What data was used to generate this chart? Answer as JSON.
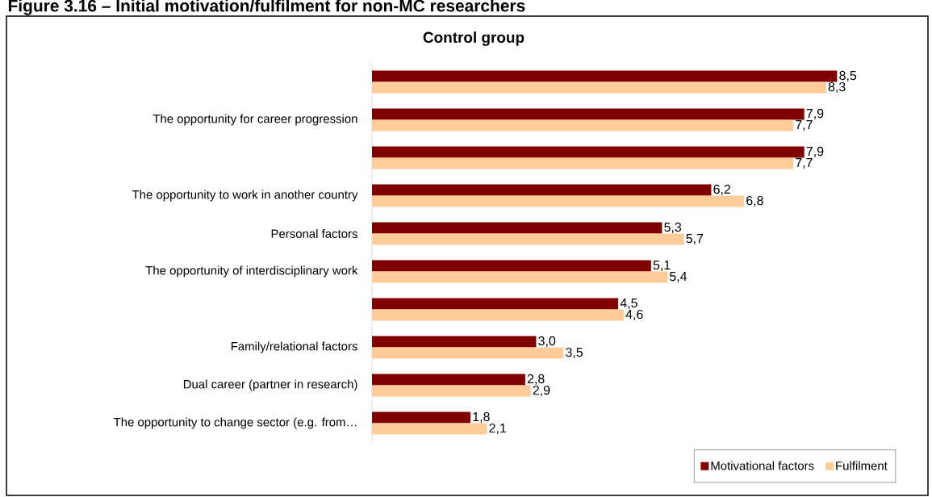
{
  "chart_data": {
    "type": "bar",
    "orientation": "horizontal",
    "title": "Figure 3.16 – Initial motivation/fulfilment for non-MC researchers",
    "subtitle": "Control group",
    "categories": [
      null,
      "The opportunity for career progression",
      null,
      "The opportunity to work in another country",
      "Personal factors",
      "The opportunity of interdisciplinary work",
      null,
      "Family/relational factors",
      "Dual career (partner in research)",
      "The opportunity to change sector (e.g. from…"
    ],
    "series": [
      {
        "name": "Motivational factors",
        "color": "#800000",
        "values": [
          8.5,
          7.9,
          7.9,
          6.2,
          5.3,
          5.1,
          4.5,
          3.0,
          2.8,
          1.8
        ],
        "value_labels": [
          "8,5",
          "7,9",
          "7,9",
          "6,2",
          "5,3",
          "5,1",
          "4,5",
          "3,0",
          "2,8",
          "1,8"
        ]
      },
      {
        "name": "Fulfilment",
        "color": "#ffcc99",
        "values": [
          8.3,
          7.7,
          7.7,
          6.8,
          5.7,
          5.4,
          4.6,
          3.5,
          2.9,
          2.1
        ],
        "value_labels": [
          "8,3",
          "7,7",
          "7,7",
          "6,8",
          "5,7",
          "5,4",
          "4,6",
          "3,5",
          "2,9",
          "2,1"
        ]
      }
    ],
    "legend": "bottom right"
  }
}
